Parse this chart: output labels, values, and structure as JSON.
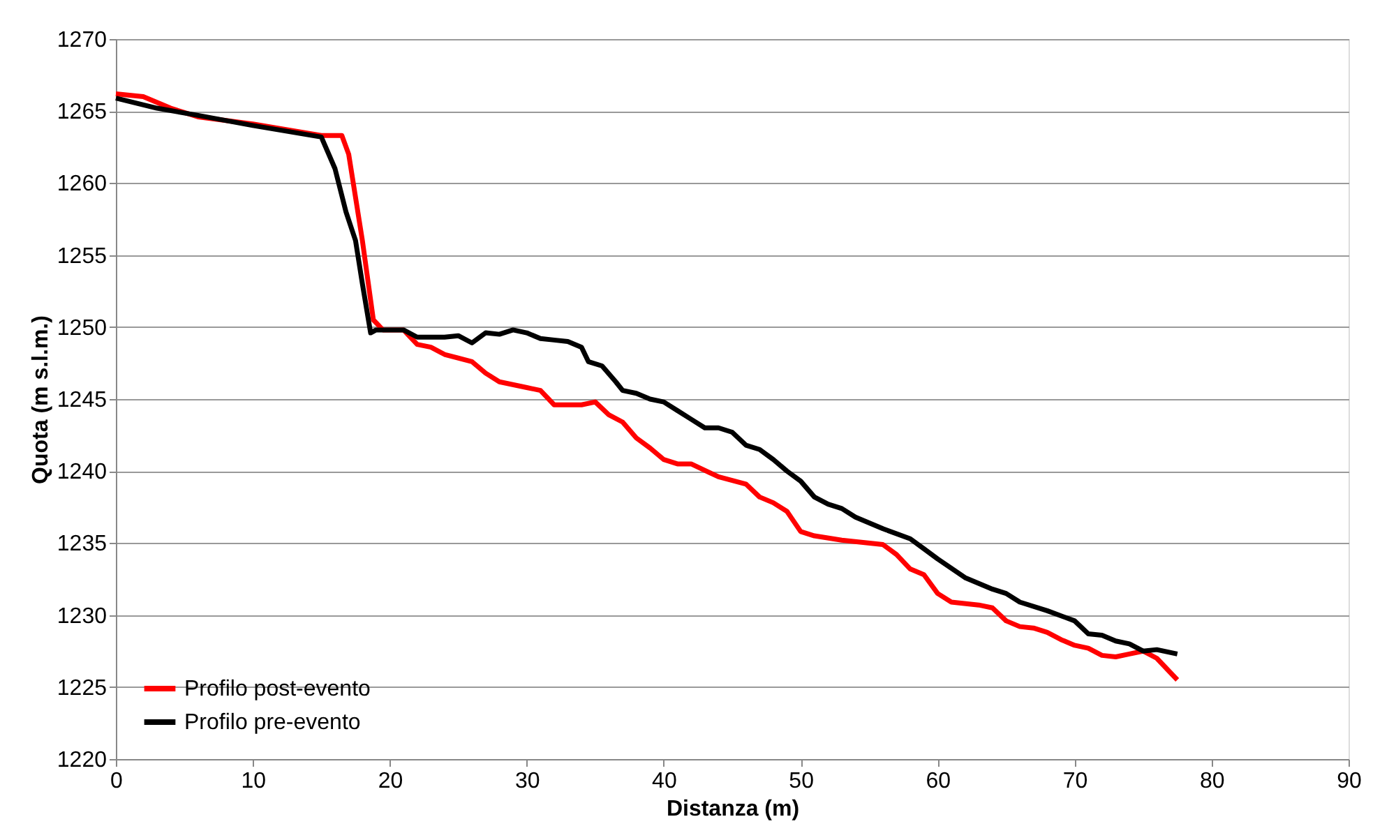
{
  "chart_data": {
    "type": "line",
    "xlabel": "Distanza  (m)",
    "ylabel": "Quota (m s.l.m.)",
    "xlim": [
      0,
      90
    ],
    "xticks": [
      0,
      10,
      20,
      30,
      40,
      50,
      60,
      70,
      80,
      90
    ],
    "ylim": [
      1220,
      1270
    ],
    "yticks": [
      1220,
      1225,
      1230,
      1235,
      1240,
      1245,
      1250,
      1255,
      1260,
      1265,
      1270
    ],
    "grid": "y",
    "legend": "bottom left",
    "line_style": "solid",
    "marker": "none",
    "series": [
      {
        "name": "Profilo post-evento",
        "color": "#ff0000",
        "x": [
          0,
          2,
          4,
          6,
          10,
          15,
          16.5,
          17,
          18,
          18.8,
          19.5,
          21,
          22,
          23,
          24,
          26,
          27,
          28,
          30,
          31,
          32,
          34,
          35,
          36,
          37,
          38,
          39,
          40,
          41,
          42,
          44,
          46,
          47,
          48,
          49,
          50,
          51,
          53,
          56,
          57,
          58,
          59,
          60,
          61,
          63,
          64,
          65,
          66,
          67,
          68,
          69,
          70,
          71,
          72,
          73,
          74,
          75,
          76,
          77.5
        ],
        "values": [
          1266.2,
          1266,
          1265.2,
          1264.6,
          1264.1,
          1263.3,
          1263.3,
          1262,
          1256,
          1250.5,
          1249.8,
          1249.8,
          1248.8,
          1248.6,
          1248.1,
          1247.6,
          1246.8,
          1246.2,
          1245.8,
          1245.6,
          1244.6,
          1244.6,
          1244.8,
          1243.9,
          1243.4,
          1242.3,
          1241.6,
          1240.8,
          1240.5,
          1240.5,
          1239.6,
          1239.1,
          1238.2,
          1237.8,
          1237.2,
          1235.8,
          1235.5,
          1235.2,
          1234.9,
          1234.2,
          1233.2,
          1232.8,
          1231.5,
          1230.9,
          1230.7,
          1230.5,
          1229.6,
          1229.2,
          1229.1,
          1228.8,
          1228.3,
          1227.9,
          1227.7,
          1227.2,
          1227.1,
          1227.3,
          1227.5,
          1227,
          1225.5
        ]
      },
      {
        "name": "Profilo pre-evento",
        "color": "#000000",
        "x": [
          0,
          3,
          6,
          10,
          15,
          16,
          16.8,
          17.5,
          18,
          18.6,
          19,
          21,
          22,
          24,
          25,
          26,
          27,
          28,
          29,
          30,
          31,
          32,
          33,
          34,
          34.5,
          35.5,
          36.5,
          37,
          38,
          39,
          40,
          41,
          42,
          43,
          44,
          45,
          46,
          47,
          48,
          49,
          50,
          51,
          52,
          53,
          54,
          56,
          58,
          59,
          60,
          62,
          64,
          65,
          66,
          68,
          70,
          71,
          72,
          73,
          74,
          75,
          76,
          77.5
        ],
        "values": [
          1265.9,
          1265.2,
          1264.7,
          1264,
          1263.2,
          1261,
          1258,
          1256,
          1253,
          1249.6,
          1249.8,
          1249.8,
          1249.3,
          1249.3,
          1249.4,
          1248.9,
          1249.6,
          1249.5,
          1249.8,
          1249.6,
          1249.2,
          1249.1,
          1249,
          1248.6,
          1247.6,
          1247.3,
          1246.2,
          1245.6,
          1245.4,
          1245,
          1244.8,
          1244.2,
          1243.6,
          1243,
          1243,
          1242.7,
          1241.8,
          1241.5,
          1240.8,
          1240,
          1239.3,
          1238.2,
          1237.7,
          1237.4,
          1236.8,
          1236,
          1235.3,
          1234.6,
          1233.9,
          1232.6,
          1231.8,
          1231.5,
          1230.9,
          1230.3,
          1229.6,
          1228.7,
          1228.6,
          1228.2,
          1228,
          1227.5,
          1227.6,
          1227.3
        ]
      }
    ]
  }
}
